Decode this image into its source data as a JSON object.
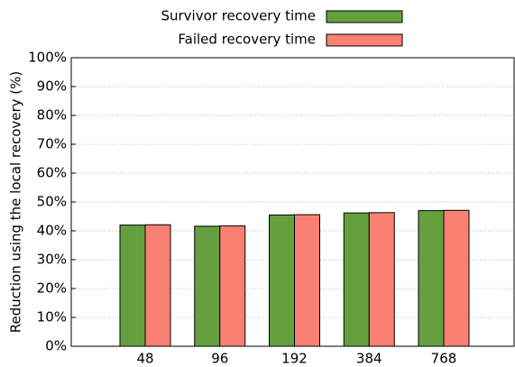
{
  "chart_data": {
    "type": "bar",
    "ylabel": "Reduction using the local recovery (%)",
    "categories": [
      "48",
      "96",
      "192",
      "384",
      "768"
    ],
    "series": [
      {
        "name": "Survivor recovery time",
        "color": "#65a03f",
        "values": [
          42.0,
          41.6,
          45.5,
          46.2,
          47.0
        ]
      },
      {
        "name": "Failed recovery time",
        "color": "#fa8072",
        "values": [
          42.1,
          41.7,
          45.6,
          46.3,
          47.1
        ]
      }
    ],
    "ylim": [
      0,
      100
    ],
    "yticks": [
      {
        "value": 0,
        "label": "0%"
      },
      {
        "value": 10,
        "label": "10%"
      },
      {
        "value": 20,
        "label": "20%"
      },
      {
        "value": 30,
        "label": "30%"
      },
      {
        "value": 40,
        "label": "40%"
      },
      {
        "value": 50,
        "label": "50%"
      },
      {
        "value": 60,
        "label": "60%"
      },
      {
        "value": 70,
        "label": "70%"
      },
      {
        "value": 80,
        "label": "80%"
      },
      {
        "value": 90,
        "label": "90%"
      },
      {
        "value": 100,
        "label": "100%"
      }
    ],
    "grid": true
  }
}
